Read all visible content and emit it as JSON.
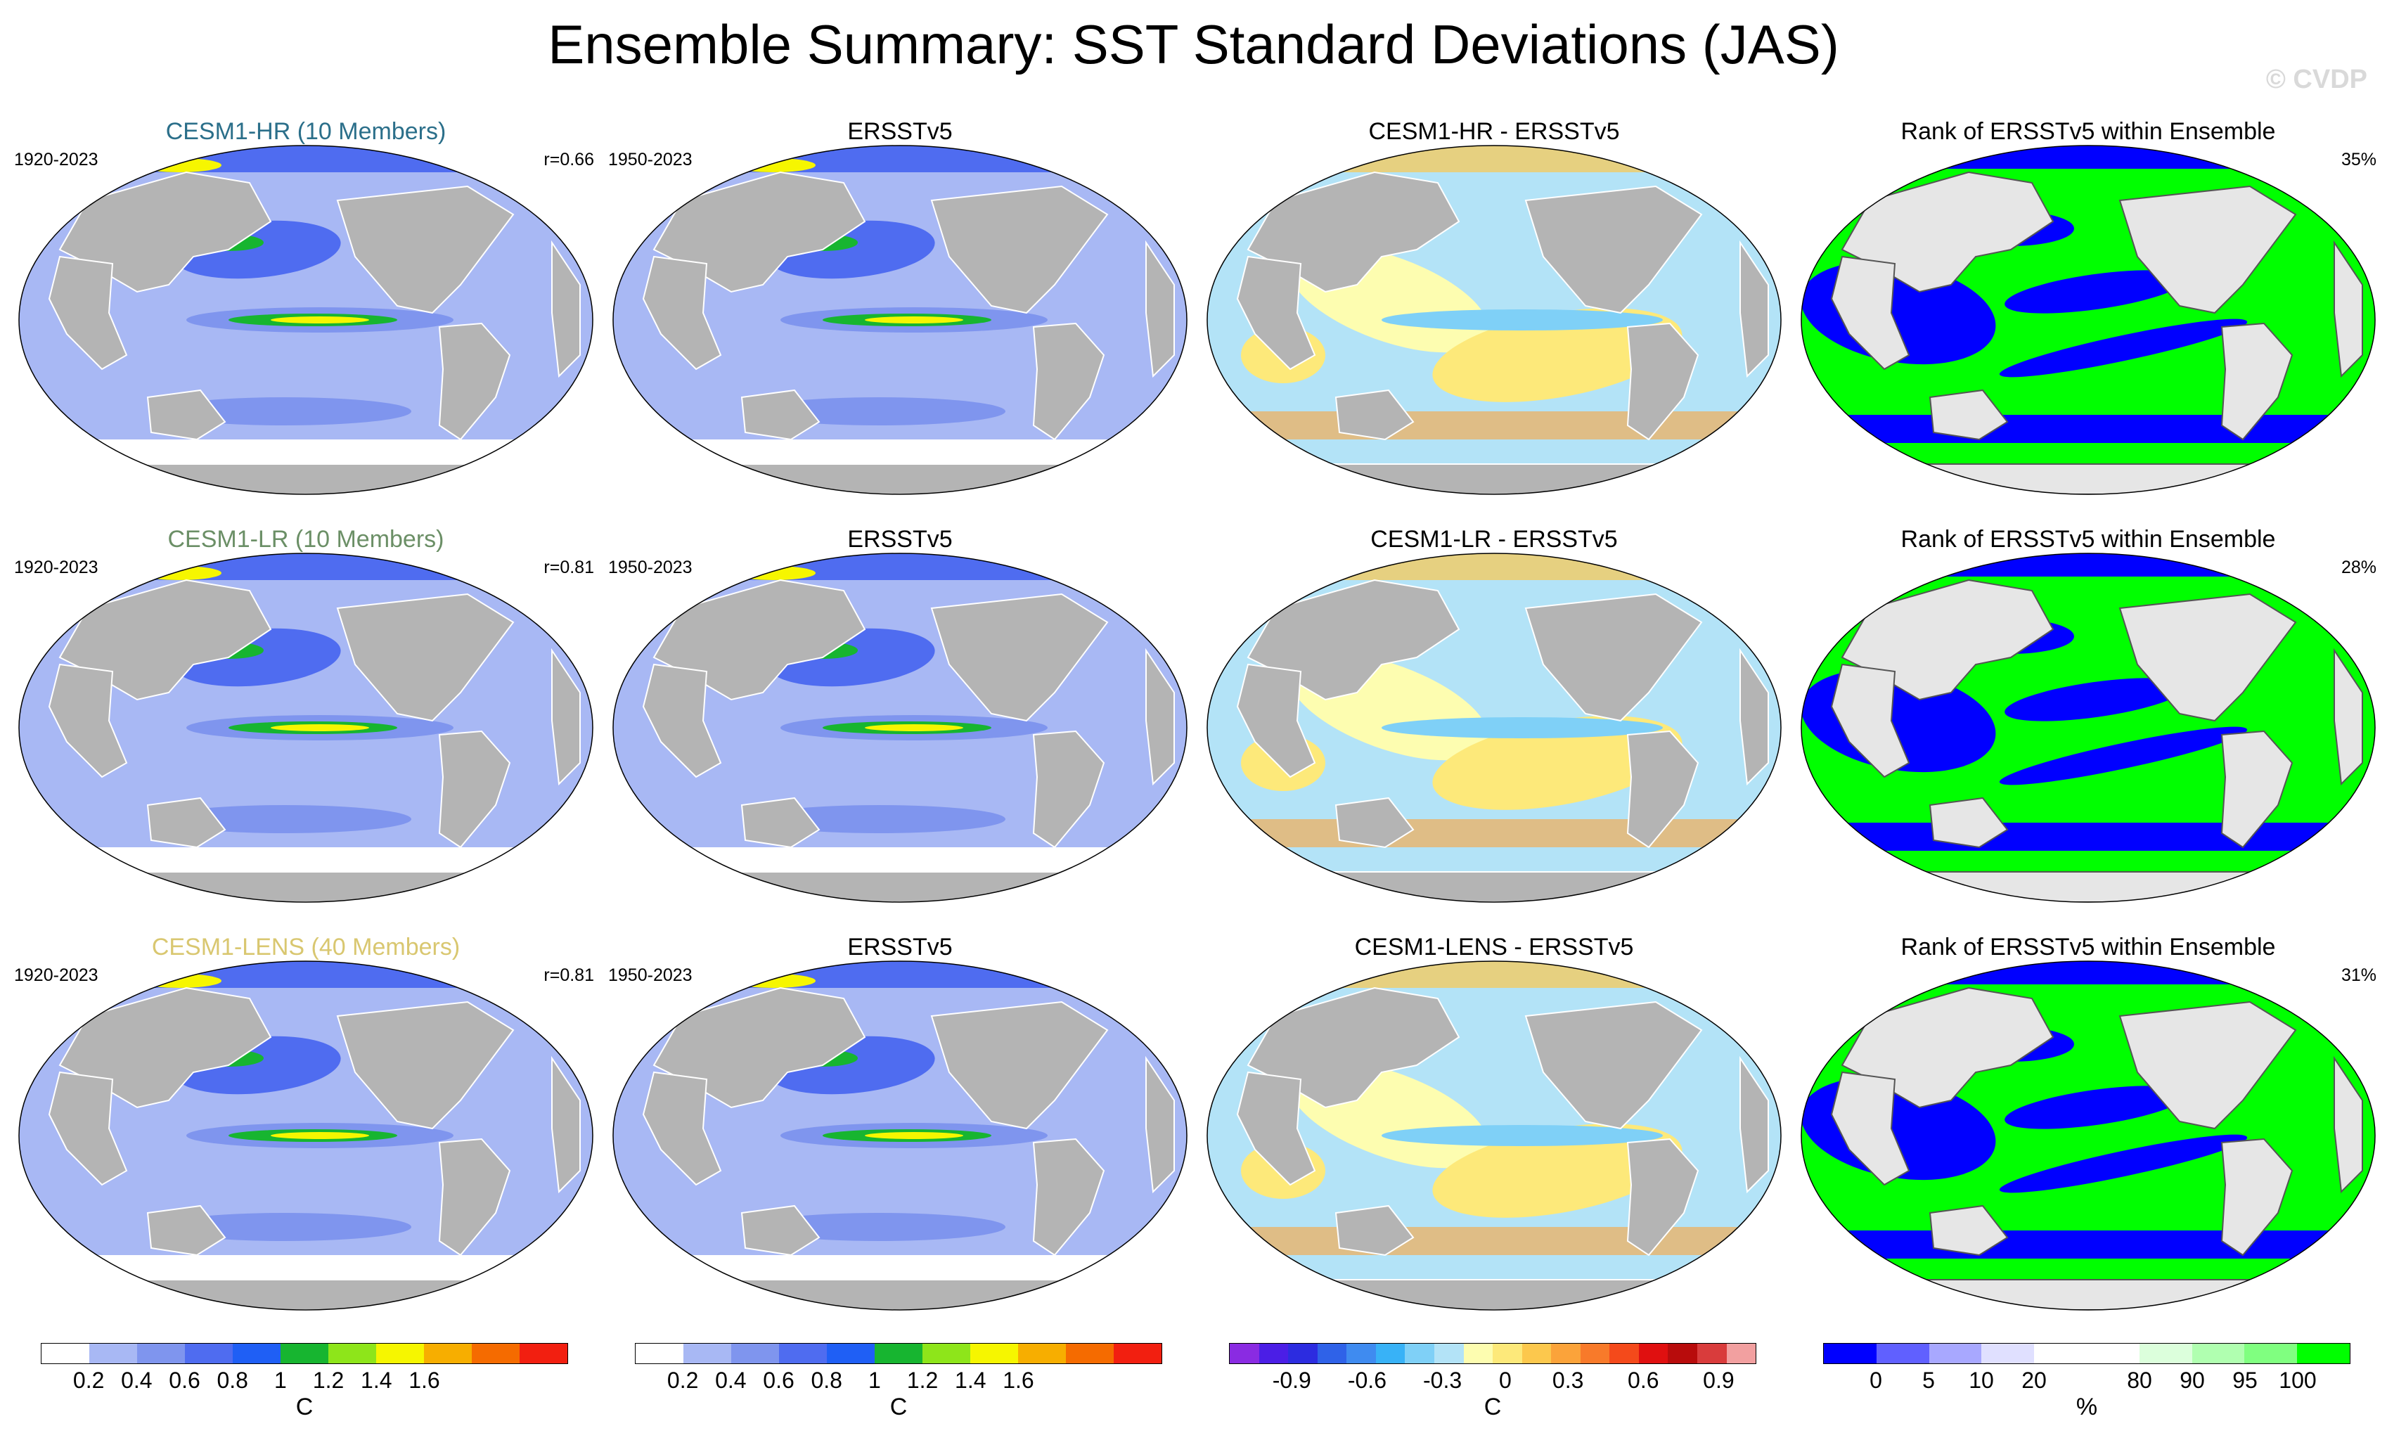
{
  "title": "Ensemble Summary: SST Standard Deviations (JAS)",
  "watermark": "© CVDP",
  "colors": {
    "land": "#b4b4b4",
    "ocean_base": "#a8b8f4",
    "pole_ice": "#ffffff",
    "rank_green": "#00ff00",
    "rank_blue": "#0000ff"
  },
  "rows": [
    {
      "model": {
        "title": "CESM1-HR (10 Members)",
        "title_color": "#2b6f8a",
        "years": "1920-2023",
        "corr": "r=0.66"
      },
      "obs": {
        "title": "ERSSTv5",
        "years": "1950-2023"
      },
      "diff": {
        "title": "CESM1-HR - ERSSTv5"
      },
      "rank": {
        "title": "Rank of ERSSTv5 within Ensemble",
        "pct": "35%"
      }
    },
    {
      "model": {
        "title": "CESM1-LR (10 Members)",
        "title_color": "#6b8f66",
        "years": "1920-2023",
        "corr": "r=0.81"
      },
      "obs": {
        "title": "ERSSTv5",
        "years": "1950-2023"
      },
      "diff": {
        "title": "CESM1-LR - ERSSTv5"
      },
      "rank": {
        "title": "Rank of ERSSTv5 within Ensemble",
        "pct": "28%"
      }
    },
    {
      "model": {
        "title": "CESM1-LENS (40 Members)",
        "title_color": "#d9c770",
        "years": "1920-2023",
        "corr": "r=0.81"
      },
      "obs": {
        "title": "ERSSTv5",
        "years": "1950-2023"
      },
      "diff": {
        "title": "CESM1-LENS - ERSSTv5"
      },
      "rank": {
        "title": "Rank of ERSSTv5 within Ensemble",
        "pct": "31%"
      }
    }
  ],
  "colorbars": [
    {
      "unit": "C",
      "colors": [
        "#ffffff",
        "#a8b8f4",
        "#7f95ee",
        "#4f6cf0",
        "#1f5ff5",
        "#17b530",
        "#8ee51a",
        "#f6f600",
        "#f7ae00",
        "#f56b00",
        "#f21f10"
      ],
      "labels": [
        "0.2",
        "0.4",
        "0.6",
        "0.8",
        "1",
        "1.2",
        "1.4",
        "1.6"
      ]
    },
    {
      "unit": "C",
      "colors": [
        "#ffffff",
        "#a8b8f4",
        "#7f95ee",
        "#4f6cf0",
        "#1f5ff5",
        "#17b530",
        "#8ee51a",
        "#f6f600",
        "#f7ae00",
        "#f56b00",
        "#f21f10"
      ],
      "labels": [
        "0.2",
        "0.4",
        "0.6",
        "0.8",
        "1",
        "1.2",
        "1.4",
        "1.6"
      ]
    },
    {
      "unit": "C",
      "colors": [
        "#8a2be2",
        "#4b1ee6",
        "#2c2ce0",
        "#2f62e8",
        "#3f8bf0",
        "#38b2f7",
        "#7fd0f7",
        "#b3e3f7",
        "#fdfdb0",
        "#fde97a",
        "#fcc84d",
        "#fba33a",
        "#f87a2a",
        "#f44a1b",
        "#e01010",
        "#b80c0c",
        "#d93c3c",
        "#f2a0a0"
      ],
      "labels": [
        "-0.9",
        "-0.6",
        "-0.3",
        "0",
        "0.3",
        "0.6",
        "0.9"
      ]
    },
    {
      "unit": "%",
      "colors": [
        "#0000ff",
        "#6060ff",
        "#a8a8ff",
        "#e0e0ff",
        "#ffffff",
        "#ffffff",
        "#dcffdc",
        "#b0ffb0",
        "#80ff80",
        "#00ff00"
      ],
      "labels": [
        "0",
        "5",
        "10",
        "20",
        "80",
        "90",
        "95",
        "100"
      ]
    }
  ]
}
